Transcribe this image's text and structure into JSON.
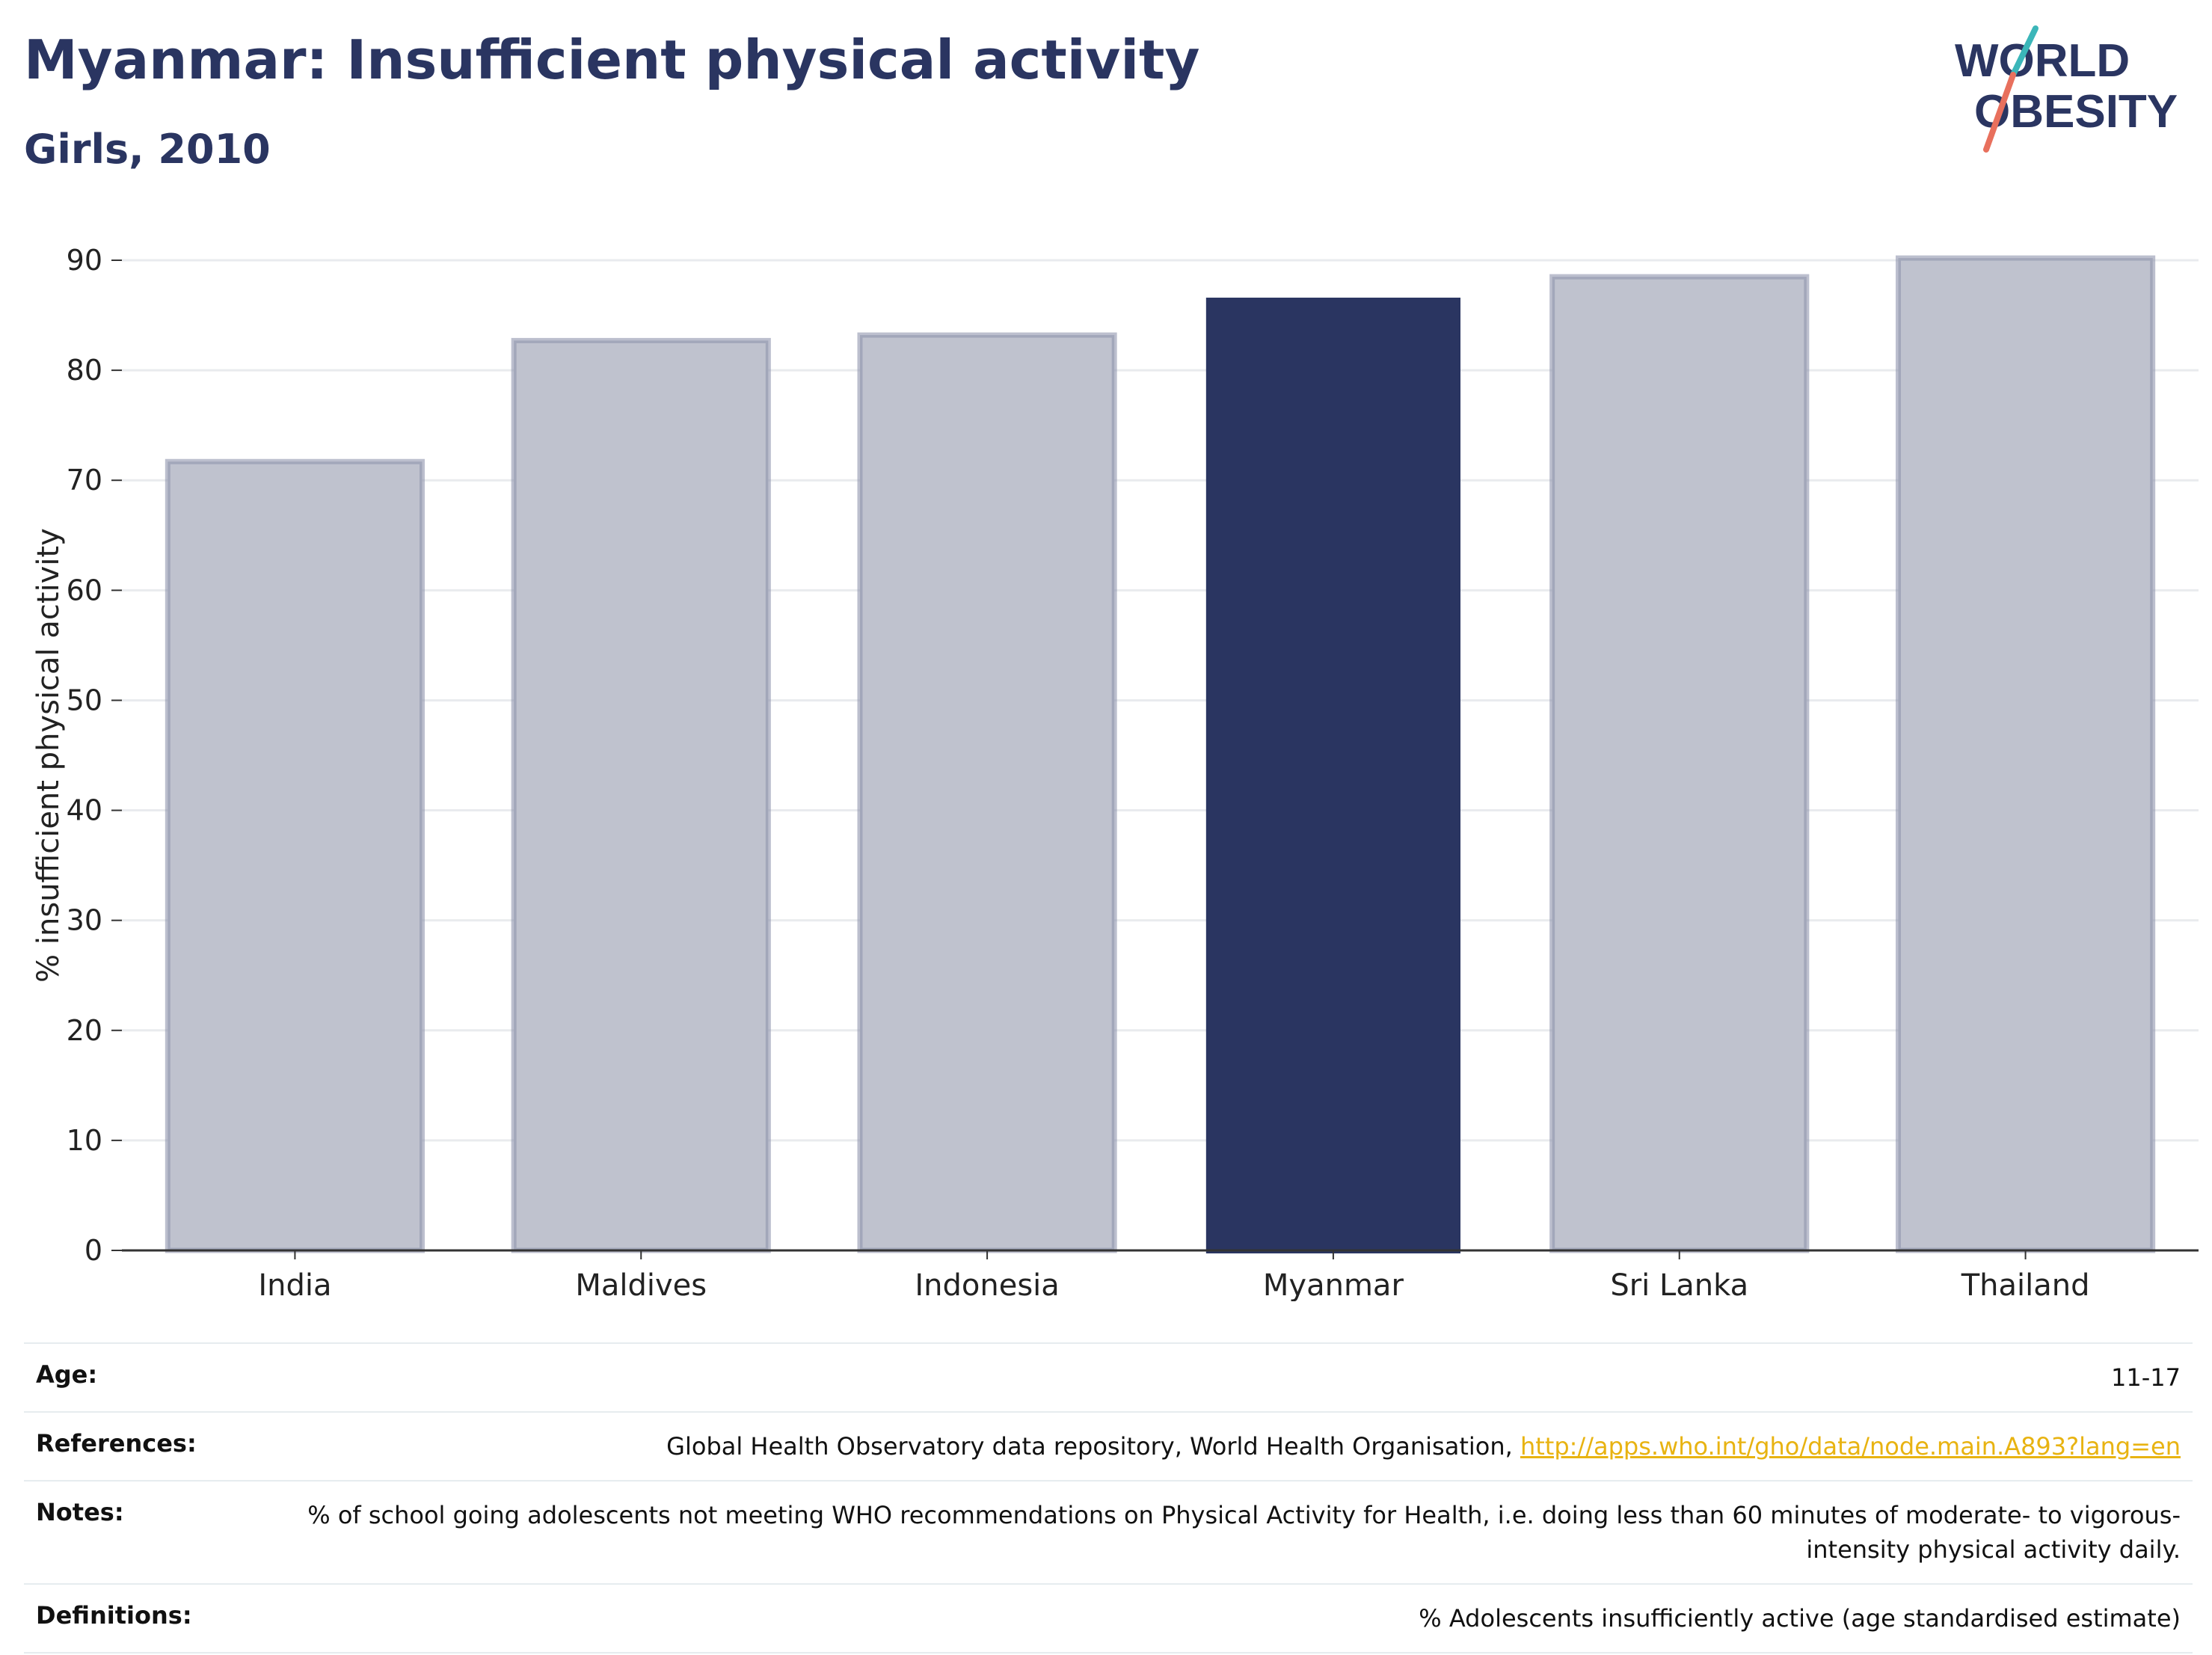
{
  "header": {
    "title": "Myanmar: Insufficient physical activity",
    "subtitle": "Girls, 2010"
  },
  "logo": {
    "line1": "WORLD",
    "line2": "OBESITY",
    "text_color": "#2a3561",
    "slash_teal": "#3bb6b9",
    "slash_coral": "#e8705d"
  },
  "chart_data": {
    "type": "bar",
    "title": "",
    "xlabel": "",
    "ylabel": "% insufficient physical activity",
    "categories": [
      "India",
      "Maldives",
      "Indonesia",
      "Myanmar",
      "Sri Lanka",
      "Thailand"
    ],
    "values": [
      71.7,
      82.7,
      83.2,
      86.6,
      88.5,
      90.2
    ],
    "highlight": "Myanmar",
    "ylim": [
      0,
      90
    ],
    "yticks": [
      0,
      10,
      20,
      30,
      40,
      50,
      60,
      70,
      80,
      90
    ],
    "grid": true,
    "legend": "none",
    "colors": {
      "highlight": "#2a3561",
      "other_fill": "#bfc2ce",
      "other_stroke": "#8f95ad",
      "grid": "#e9ebee",
      "axis": "#333333"
    }
  },
  "meta": {
    "rows": [
      {
        "key": "Age:",
        "value": "11-17"
      },
      {
        "key": "References:",
        "value": "Global Health Observatory data repository, World Health Organisation, ",
        "link": "http://apps.who.int/gho/data/node.main.A893?lang=en"
      },
      {
        "key": "Notes:",
        "value": "% of school going adolescents not meeting WHO recommendations on Physical Activity for Health, i.e. doing less than 60 minutes of moderate- to vigorous-intensity physical activity daily."
      },
      {
        "key": "Definitions:",
        "value": "% Adolescents insufficiently active (age standardised estimate)"
      }
    ]
  }
}
